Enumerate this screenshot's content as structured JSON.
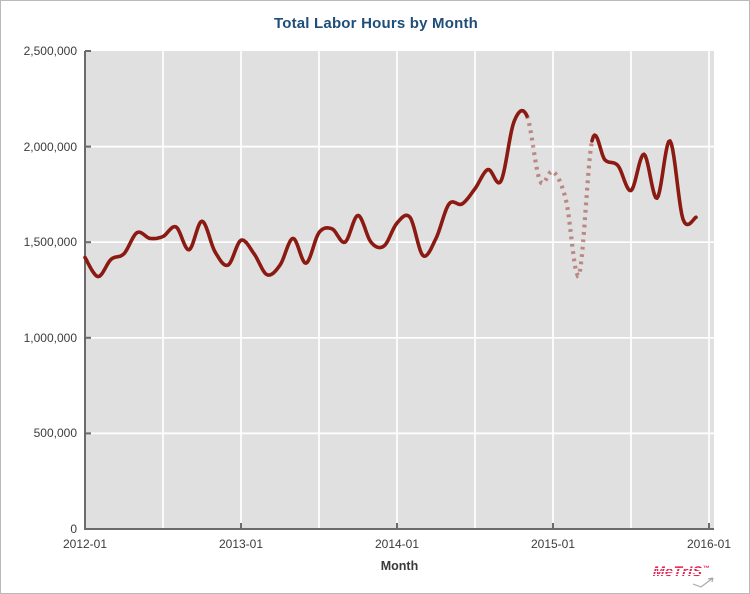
{
  "title": "Total Labor Hours by Month",
  "x_axis_title": "Month",
  "logo": {
    "text": "MeTrIS",
    "tm": "™"
  },
  "colors": {
    "title": "#1F4E79",
    "plot_background": "#e0e0e0",
    "gridline": "#ffffff",
    "axis": "#6b6b6b",
    "line": "#8b1a12",
    "dashed_line_effective": "#b57d79",
    "logo": "#e8224e"
  },
  "chart_data": {
    "type": "line",
    "title": "Total Labor Hours by Month",
    "xlabel": "Month",
    "ylabel": "",
    "ylim": [
      0,
      2500000
    ],
    "grid": true,
    "legend": "none",
    "x_tick_labels": [
      "2012-01",
      "2013-01",
      "2014-01",
      "2015-01",
      "2016-01"
    ],
    "x_tick_month_index": [
      0,
      12,
      24,
      36,
      48
    ],
    "y_tick_labels": [
      "0",
      "500,000",
      "1,000,000",
      "1,500,000",
      "2,000,000",
      "2,500,000"
    ],
    "y_tick_values": [
      0,
      500000,
      1000000,
      1500000,
      2000000,
      2500000
    ],
    "vertical_gridlines_every_months": 6,
    "series": [
      {
        "name": "Total Labor Hours",
        "style_note": "solid dark red line; segment between 2014-11 and 2015-04 drawn dashed/faded",
        "dashed_month_index_range": [
          34,
          39
        ],
        "x": [
          "2012-01",
          "2012-02",
          "2012-03",
          "2012-04",
          "2012-05",
          "2012-06",
          "2012-07",
          "2012-08",
          "2012-09",
          "2012-10",
          "2012-11",
          "2012-12",
          "2013-01",
          "2013-02",
          "2013-03",
          "2013-04",
          "2013-05",
          "2013-06",
          "2013-07",
          "2013-08",
          "2013-09",
          "2013-10",
          "2013-11",
          "2013-12",
          "2014-01",
          "2014-02",
          "2014-03",
          "2014-04",
          "2014-05",
          "2014-06",
          "2014-07",
          "2014-08",
          "2014-09",
          "2014-10",
          "2014-11",
          "2014-12",
          "2015-01",
          "2015-02",
          "2015-03",
          "2015-04",
          "2015-05",
          "2015-06",
          "2015-07",
          "2015-08",
          "2015-09",
          "2015-10",
          "2015-11",
          "2015-12"
        ],
        "values": [
          1420000,
          1320000,
          1410000,
          1440000,
          1550000,
          1520000,
          1530000,
          1580000,
          1460000,
          1610000,
          1450000,
          1380000,
          1510000,
          1440000,
          1330000,
          1380000,
          1520000,
          1390000,
          1550000,
          1570000,
          1500000,
          1640000,
          1500000,
          1480000,
          1600000,
          1630000,
          1430000,
          1520000,
          1700000,
          1700000,
          1780000,
          1880000,
          1820000,
          2130000,
          2160000,
          1820000,
          1870000,
          1720000,
          1330000,
          2030000,
          1930000,
          1900000,
          1770000,
          1960000,
          1730000,
          2030000,
          1620000,
          1630000
        ]
      }
    ]
  }
}
